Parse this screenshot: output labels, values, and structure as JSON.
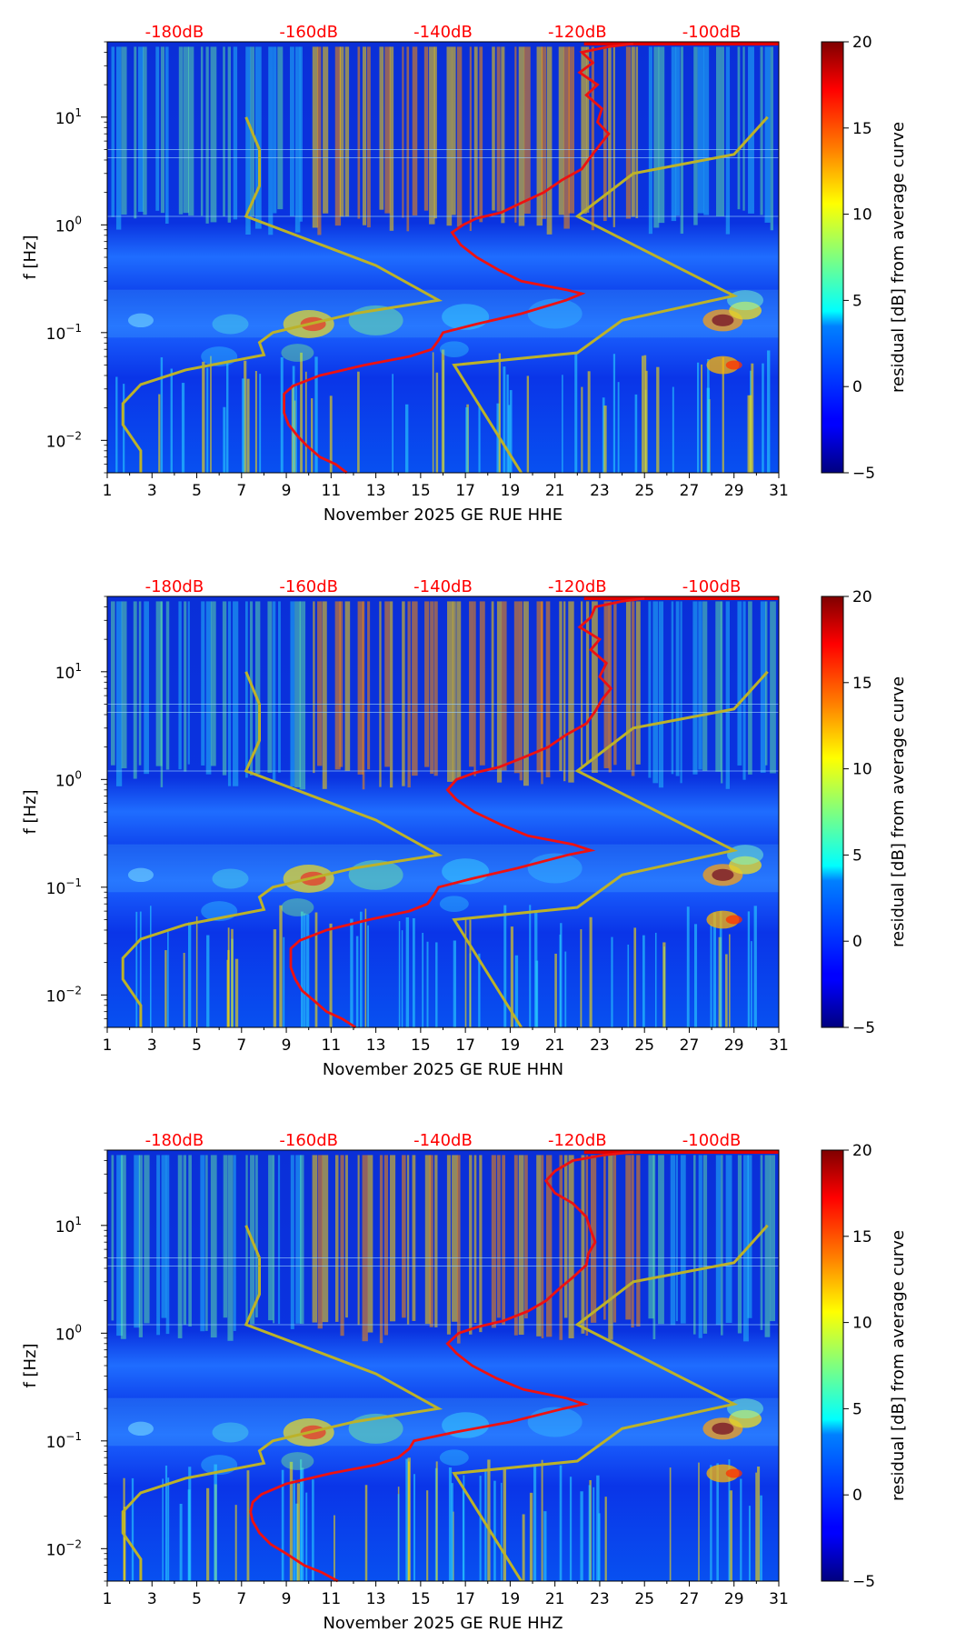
{
  "chart_data": [
    {
      "type": "heatmap",
      "title": "November 2025 GE RUE  HHE",
      "xlabel": "November 2025 GE RUE  HHE",
      "ylabel": "f [Hz]",
      "xlim": [
        1,
        31
      ],
      "ylim": [
        0.005,
        50
      ],
      "x_ticks": [
        "1",
        "3",
        "5",
        "7",
        "9",
        "11",
        "13",
        "15",
        "17",
        "19",
        "21",
        "23",
        "25",
        "27",
        "29",
        "31"
      ],
      "y_ticks": [
        {
          "value": 0.01,
          "base": "10",
          "exp": "−2"
        },
        {
          "value": 0.1,
          "base": "10",
          "exp": "−1"
        },
        {
          "value": 1,
          "base": "10",
          "exp": "0"
        },
        {
          "value": 10,
          "base": "10",
          "exp": "1"
        }
      ],
      "db_ticks": [
        {
          "label": "-180dB",
          "day": 4
        },
        {
          "label": "-160dB",
          "day": 10
        },
        {
          "label": "-140dB",
          "day": 16
        },
        {
          "label": "-120dB",
          "day": 22
        },
        {
          "label": "-100dB",
          "day": 28
        }
      ],
      "colorbar": {
        "label": "residual [dB] from average curve",
        "min": -5,
        "max": 20,
        "ticks": [
          "20",
          "15",
          "10",
          "5",
          "0",
          "−5"
        ],
        "tick_values": [
          20,
          15,
          10,
          5,
          0,
          -5
        ]
      },
      "average_curve": [
        [
          11.7,
          0.005
        ],
        [
          11.2,
          0.006
        ],
        [
          10.5,
          0.007
        ],
        [
          9.9,
          0.009
        ],
        [
          9.5,
          0.011
        ],
        [
          9.1,
          0.014
        ],
        [
          8.9,
          0.018
        ],
        [
          8.9,
          0.022
        ],
        [
          8.9,
          0.027
        ],
        [
          9.3,
          0.032
        ],
        [
          10.5,
          0.04
        ],
        [
          12.5,
          0.05
        ],
        [
          14.5,
          0.06
        ],
        [
          15.5,
          0.07
        ],
        [
          15.8,
          0.085
        ],
        [
          16.0,
          0.1
        ],
        [
          17.5,
          0.12
        ],
        [
          19.5,
          0.15
        ],
        [
          21.5,
          0.2
        ],
        [
          22.2,
          0.23
        ],
        [
          21.5,
          0.25
        ],
        [
          19.5,
          0.3
        ],
        [
          18.5,
          0.38
        ],
        [
          17.5,
          0.5
        ],
        [
          16.8,
          0.65
        ],
        [
          16.4,
          0.85
        ],
        [
          16.9,
          1.0
        ],
        [
          17.5,
          1.15
        ],
        [
          18.6,
          1.3
        ],
        [
          19.5,
          1.6
        ],
        [
          20.5,
          2.0
        ],
        [
          21.3,
          2.6
        ],
        [
          22.2,
          3.3
        ],
        [
          22.6,
          4.3
        ],
        [
          23.0,
          5.5
        ],
        [
          23.4,
          7.0
        ],
        [
          22.9,
          9.0
        ],
        [
          23.1,
          12
        ],
        [
          22.4,
          16
        ],
        [
          22.9,
          20
        ],
        [
          22.1,
          26
        ],
        [
          22.7,
          32
        ],
        [
          22.2,
          40
        ],
        [
          23.4,
          45
        ],
        [
          24.5,
          48
        ]
      ],
      "noise_model_lines": [
        {
          "name": "low noise model",
          "points": [
            [
              2.5,
              0.005
            ],
            [
              2.5,
              0.008
            ],
            [
              1.7,
              0.014
            ],
            [
              1.7,
              0.022
            ],
            [
              2.5,
              0.033
            ],
            [
              4.5,
              0.045
            ],
            [
              8.0,
              0.062
            ],
            [
              7.8,
              0.081
            ],
            [
              8.4,
              0.1
            ],
            [
              12.0,
              0.15
            ],
            [
              15.8,
              0.2
            ],
            [
              13.0,
              0.42
            ],
            [
              7.2,
              1.2
            ],
            [
              7.8,
              2.3
            ],
            [
              7.8,
              5.0
            ],
            [
              7.2,
              10
            ]
          ]
        },
        {
          "name": "high noise model",
          "points": [
            [
              19.5,
              0.005
            ],
            [
              16.5,
              0.05
            ],
            [
              22.0,
              0.065
            ],
            [
              24.0,
              0.13
            ],
            [
              29.0,
              0.22
            ],
            [
              22.0,
              1.2
            ],
            [
              24.5,
              3.0
            ],
            [
              29.0,
              4.5
            ],
            [
              30.5,
              10
            ]
          ]
        }
      ]
    },
    {
      "type": "heatmap",
      "title": "November 2025 GE RUE  HHN",
      "xlabel": "November 2025 GE RUE  HHN",
      "ylabel": "f [Hz]",
      "xlim": [
        1,
        31
      ],
      "ylim": [
        0.005,
        50
      ],
      "x_ticks": [
        "1",
        "3",
        "5",
        "7",
        "9",
        "11",
        "13",
        "15",
        "17",
        "19",
        "21",
        "23",
        "25",
        "27",
        "29",
        "31"
      ],
      "y_ticks": [
        {
          "value": 0.01,
          "base": "10",
          "exp": "−2"
        },
        {
          "value": 0.1,
          "base": "10",
          "exp": "−1"
        },
        {
          "value": 1,
          "base": "10",
          "exp": "0"
        },
        {
          "value": 10,
          "base": "10",
          "exp": "1"
        }
      ],
      "db_ticks": [
        {
          "label": "-180dB",
          "day": 4
        },
        {
          "label": "-160dB",
          "day": 10
        },
        {
          "label": "-140dB",
          "day": 16
        },
        {
          "label": "-120dB",
          "day": 22
        },
        {
          "label": "-100dB",
          "day": 28
        }
      ],
      "colorbar": {
        "label": "residual [dB] from average curve",
        "min": -5,
        "max": 20,
        "ticks": [
          "20",
          "15",
          "10",
          "5",
          "0",
          "−5"
        ],
        "tick_values": [
          20,
          15,
          10,
          5,
          0,
          -5
        ]
      },
      "average_curve": [
        [
          12.1,
          0.005
        ],
        [
          11.5,
          0.006
        ],
        [
          10.8,
          0.007
        ],
        [
          10.2,
          0.009
        ],
        [
          9.7,
          0.011
        ],
        [
          9.4,
          0.014
        ],
        [
          9.2,
          0.018
        ],
        [
          9.2,
          0.022
        ],
        [
          9.2,
          0.027
        ],
        [
          9.6,
          0.032
        ],
        [
          10.8,
          0.04
        ],
        [
          12.7,
          0.05
        ],
        [
          14.5,
          0.06
        ],
        [
          15.3,
          0.07
        ],
        [
          15.6,
          0.085
        ],
        [
          15.8,
          0.1
        ],
        [
          17.3,
          0.12
        ],
        [
          19.3,
          0.15
        ],
        [
          21.6,
          0.2
        ],
        [
          22.6,
          0.22
        ],
        [
          21.8,
          0.25
        ],
        [
          19.8,
          0.3
        ],
        [
          18.6,
          0.38
        ],
        [
          17.4,
          0.5
        ],
        [
          16.6,
          0.65
        ],
        [
          16.2,
          0.8
        ],
        [
          16.6,
          1.0
        ],
        [
          17.4,
          1.15
        ],
        [
          18.5,
          1.3
        ],
        [
          19.6,
          1.6
        ],
        [
          20.7,
          2.0
        ],
        [
          21.5,
          2.6
        ],
        [
          22.4,
          3.3
        ],
        [
          22.8,
          4.3
        ],
        [
          23.1,
          5.5
        ],
        [
          23.5,
          7.0
        ],
        [
          23.0,
          9.0
        ],
        [
          23.3,
          12
        ],
        [
          22.6,
          16
        ],
        [
          23.0,
          20
        ],
        [
          22.1,
          26
        ],
        [
          22.6,
          32
        ],
        [
          22.8,
          40
        ],
        [
          24.0,
          45
        ],
        [
          25.0,
          48
        ]
      ],
      "noise_model_lines": [
        {
          "name": "low noise model",
          "points": [
            [
              2.5,
              0.005
            ],
            [
              2.5,
              0.008
            ],
            [
              1.7,
              0.014
            ],
            [
              1.7,
              0.022
            ],
            [
              2.5,
              0.033
            ],
            [
              4.5,
              0.045
            ],
            [
              8.0,
              0.062
            ],
            [
              7.8,
              0.081
            ],
            [
              8.4,
              0.1
            ],
            [
              12.0,
              0.15
            ],
            [
              15.8,
              0.2
            ],
            [
              13.0,
              0.42
            ],
            [
              7.2,
              1.2
            ],
            [
              7.8,
              2.3
            ],
            [
              7.8,
              5.0
            ],
            [
              7.2,
              10
            ]
          ]
        },
        {
          "name": "high noise model",
          "points": [
            [
              19.5,
              0.005
            ],
            [
              16.5,
              0.05
            ],
            [
              22.0,
              0.065
            ],
            [
              24.0,
              0.13
            ],
            [
              29.0,
              0.22
            ],
            [
              22.0,
              1.2
            ],
            [
              24.5,
              3.0
            ],
            [
              29.0,
              4.5
            ],
            [
              30.5,
              10
            ]
          ]
        }
      ]
    },
    {
      "type": "heatmap",
      "title": "November 2025 GE RUE  HHZ",
      "xlabel": "November 2025 GE RUE  HHZ",
      "ylabel": "f [Hz]",
      "xlim": [
        1,
        31
      ],
      "ylim": [
        0.005,
        50
      ],
      "x_ticks": [
        "1",
        "3",
        "5",
        "7",
        "9",
        "11",
        "13",
        "15",
        "17",
        "19",
        "21",
        "23",
        "25",
        "27",
        "29",
        "31"
      ],
      "y_ticks": [
        {
          "value": 0.01,
          "base": "10",
          "exp": "−2"
        },
        {
          "value": 0.1,
          "base": "10",
          "exp": "−1"
        },
        {
          "value": 1,
          "base": "10",
          "exp": "0"
        },
        {
          "value": 10,
          "base": "10",
          "exp": "1"
        }
      ],
      "db_ticks": [
        {
          "label": "-180dB",
          "day": 4
        },
        {
          "label": "-160dB",
          "day": 10
        },
        {
          "label": "-140dB",
          "day": 16
        },
        {
          "label": "-120dB",
          "day": 22
        },
        {
          "label": "-100dB",
          "day": 28
        }
      ],
      "colorbar": {
        "label": "residual [dB] from average curve",
        "min": -5,
        "max": 20,
        "ticks": [
          "20",
          "15",
          "10",
          "5",
          "0",
          "−5"
        ],
        "tick_values": [
          20,
          15,
          10,
          5,
          0,
          -5
        ]
      },
      "average_curve": [
        [
          11.3,
          0.005
        ],
        [
          10.6,
          0.006
        ],
        [
          9.8,
          0.007
        ],
        [
          9.0,
          0.009
        ],
        [
          8.3,
          0.011
        ],
        [
          7.8,
          0.014
        ],
        [
          7.5,
          0.018
        ],
        [
          7.4,
          0.022
        ],
        [
          7.5,
          0.027
        ],
        [
          7.9,
          0.032
        ],
        [
          9.0,
          0.04
        ],
        [
          11.0,
          0.05
        ],
        [
          13.0,
          0.06
        ],
        [
          14.0,
          0.07
        ],
        [
          14.5,
          0.085
        ],
        [
          14.7,
          0.1
        ],
        [
          16.5,
          0.12
        ],
        [
          19.0,
          0.15
        ],
        [
          21.4,
          0.2
        ],
        [
          22.3,
          0.22
        ],
        [
          21.5,
          0.25
        ],
        [
          19.6,
          0.3
        ],
        [
          18.4,
          0.38
        ],
        [
          17.3,
          0.5
        ],
        [
          16.6,
          0.65
        ],
        [
          16.2,
          0.8
        ],
        [
          16.7,
          1.0
        ],
        [
          17.6,
          1.15
        ],
        [
          18.7,
          1.3
        ],
        [
          19.8,
          1.6
        ],
        [
          20.6,
          2.0
        ],
        [
          21.2,
          2.6
        ],
        [
          21.8,
          3.3
        ],
        [
          22.4,
          4.3
        ],
        [
          22.5,
          5.5
        ],
        [
          22.8,
          7.0
        ],
        [
          22.6,
          9.0
        ],
        [
          22.4,
          12
        ],
        [
          21.8,
          16
        ],
        [
          21.0,
          20
        ],
        [
          20.6,
          26
        ],
        [
          21.0,
          32
        ],
        [
          21.8,
          40
        ],
        [
          23.2,
          45
        ],
        [
          24.5,
          48
        ]
      ],
      "noise_model_lines": [
        {
          "name": "low noise model",
          "points": [
            [
              2.5,
              0.005
            ],
            [
              2.5,
              0.008
            ],
            [
              1.7,
              0.014
            ],
            [
              1.7,
              0.022
            ],
            [
              2.5,
              0.033
            ],
            [
              4.5,
              0.045
            ],
            [
              8.0,
              0.062
            ],
            [
              7.8,
              0.081
            ],
            [
              8.4,
              0.1
            ],
            [
              12.0,
              0.15
            ],
            [
              15.8,
              0.2
            ],
            [
              13.0,
              0.42
            ],
            [
              7.2,
              1.2
            ],
            [
              7.8,
              2.3
            ],
            [
              7.8,
              5.0
            ],
            [
              7.2,
              10
            ]
          ]
        },
        {
          "name": "high noise model",
          "points": [
            [
              19.5,
              0.005
            ],
            [
              16.5,
              0.05
            ],
            [
              22.0,
              0.065
            ],
            [
              24.0,
              0.13
            ],
            [
              29.0,
              0.22
            ],
            [
              22.0,
              1.2
            ],
            [
              24.5,
              3.0
            ],
            [
              29.0,
              4.5
            ],
            [
              30.5,
              10
            ]
          ]
        }
      ]
    }
  ]
}
